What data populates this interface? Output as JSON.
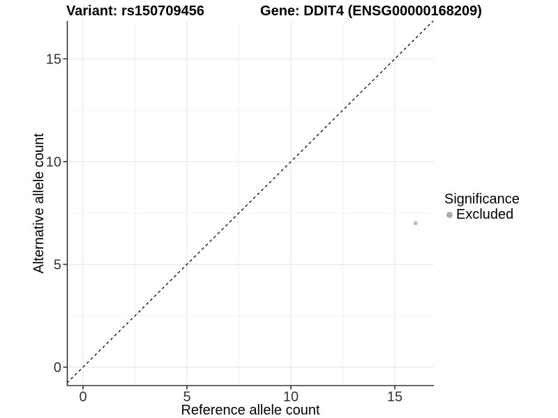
{
  "chart_data": {
    "type": "scatter",
    "titles": [
      {
        "text": "Variant: rs150709456"
      },
      {
        "text": "Gene: DDIT4 (ENSG00000168209)"
      }
    ],
    "xlabel": "Reference allele count",
    "ylabel": "Alternative allele count",
    "x_ticks": [
      0,
      5,
      10,
      15
    ],
    "y_ticks": [
      0,
      5,
      10,
      15
    ],
    "x_minor_gridlines": [
      2.5,
      7.5,
      12.5
    ],
    "y_minor_gridlines": [
      2.5,
      7.5,
      12.5
    ],
    "xlim": [
      -0.77,
      16.88
    ],
    "ylim": [
      -0.9,
      16.85
    ],
    "grid": {
      "on": true,
      "major_color": "#e7e7e7",
      "minor_color": "#f3f3f3"
    },
    "axis_color": "#333333",
    "tick_label_color": "#333333",
    "background": "#ffffff",
    "identity_line": {
      "equation": "y = x",
      "style": "dashed",
      "color": "#000000"
    },
    "series": [
      {
        "name": "Excluded",
        "color": "#bdbdbd",
        "points": [
          {
            "x": 16,
            "y": 7
          }
        ]
      }
    ],
    "legend": {
      "title": "Significance",
      "position": "right",
      "items": [
        {
          "label": "Excluded",
          "color": "#adadad"
        }
      ]
    }
  }
}
